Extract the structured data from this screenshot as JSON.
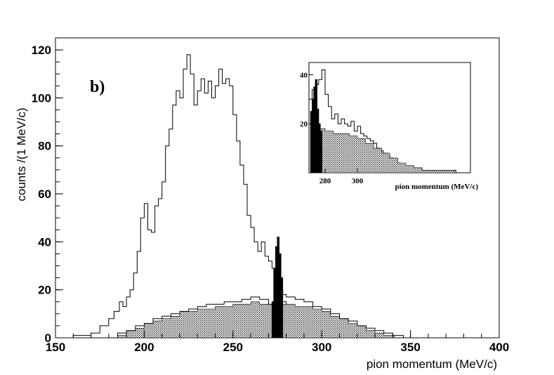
{
  "chart_data": [
    {
      "type": "histogram",
      "panel_label": "b)",
      "xlabel": "pion momentum (MeV/c)",
      "ylabel": "counts /(1 MeV/c)",
      "xlim": [
        150,
        400
      ],
      "ylim": [
        0,
        125
      ],
      "x_ticks": [
        150,
        200,
        250,
        300,
        350,
        400
      ],
      "y_ticks": [
        0,
        20,
        40,
        60,
        80,
        100,
        120
      ],
      "bin_width": 1,
      "series": [
        {
          "style": "open-outline",
          "points": [
            [
              160,
              1
            ],
            [
              165,
              1
            ],
            [
              170,
              2
            ],
            [
              175,
              5
            ],
            [
              180,
              8
            ],
            [
              183,
              11
            ],
            [
              186,
              15
            ],
            [
              188,
              13
            ],
            [
              190,
              17
            ],
            [
              192,
              20
            ],
            [
              194,
              27
            ],
            [
              196,
              36
            ],
            [
              198,
              50
            ],
            [
              200,
              56
            ],
            [
              202,
              45
            ],
            [
              204,
              44
            ],
            [
              206,
              55
            ],
            [
              208,
              58
            ],
            [
              210,
              65
            ],
            [
              212,
              80
            ],
            [
              214,
              87
            ],
            [
              216,
              97
            ],
            [
              218,
              103
            ],
            [
              220,
              100
            ],
            [
              222,
              112
            ],
            [
              224,
              118
            ],
            [
              226,
              110
            ],
            [
              228,
              97
            ],
            [
              230,
              103
            ],
            [
              232,
              108
            ],
            [
              234,
              102
            ],
            [
              236,
              107
            ],
            [
              238,
              100
            ],
            [
              240,
              105
            ],
            [
              242,
              112
            ],
            [
              244,
              106
            ],
            [
              246,
              108
            ],
            [
              248,
              105
            ],
            [
              250,
              93
            ],
            [
              252,
              82
            ],
            [
              254,
              72
            ],
            [
              256,
              64
            ],
            [
              258,
              51
            ],
            [
              260,
              46
            ],
            [
              262,
              40
            ],
            [
              264,
              36
            ],
            [
              266,
              40
            ],
            [
              268,
              34
            ],
            [
              270,
              32
            ],
            [
              272,
              29
            ],
            [
              274,
              25
            ],
            [
              276,
              20
            ],
            [
              278,
              15
            ],
            [
              280,
              10
            ],
            [
              285,
              5
            ],
            [
              290,
              2
            ],
            [
              295,
              1
            ]
          ]
        },
        {
          "style": "dotted-fill",
          "points": [
            [
              185,
              1
            ],
            [
              190,
              3
            ],
            [
              195,
              4
            ],
            [
              200,
              6
            ],
            [
              205,
              7
            ],
            [
              210,
              8
            ],
            [
              215,
              9
            ],
            [
              220,
              11
            ],
            [
              225,
              11
            ],
            [
              230,
              12
            ],
            [
              235,
              12
            ],
            [
              240,
              13
            ],
            [
              245,
              13
            ],
            [
              250,
              14
            ],
            [
              255,
              14
            ],
            [
              260,
              15
            ],
            [
              265,
              14
            ],
            [
              270,
              14
            ],
            [
              275,
              14
            ],
            [
              280,
              14
            ],
            [
              285,
              13
            ],
            [
              290,
              13
            ],
            [
              295,
              12
            ],
            [
              300,
              11
            ],
            [
              305,
              9
            ],
            [
              310,
              8
            ],
            [
              315,
              6
            ],
            [
              320,
              5
            ],
            [
              325,
              3
            ],
            [
              330,
              2
            ],
            [
              335,
              1
            ],
            [
              340,
              1
            ]
          ]
        },
        {
          "style": "open-outline",
          "points": [
            [
              185,
              2
            ],
            [
              190,
              3
            ],
            [
              195,
              5
            ],
            [
              200,
              6
            ],
            [
              205,
              8
            ],
            [
              210,
              9
            ],
            [
              215,
              10
            ],
            [
              220,
              11
            ],
            [
              225,
              12
            ],
            [
              230,
              13
            ],
            [
              235,
              14
            ],
            [
              240,
              14
            ],
            [
              245,
              15
            ],
            [
              250,
              15
            ],
            [
              255,
              16
            ],
            [
              260,
              17
            ],
            [
              265,
              16
            ],
            [
              270,
              14
            ],
            [
              275,
              18
            ],
            [
              280,
              17
            ],
            [
              285,
              16
            ],
            [
              290,
              15
            ],
            [
              295,
              13
            ],
            [
              300,
              12
            ],
            [
              305,
              10
            ],
            [
              310,
              8
            ],
            [
              315,
              7
            ],
            [
              320,
              5
            ],
            [
              325,
              4
            ],
            [
              330,
              3
            ],
            [
              335,
              2
            ],
            [
              340,
              1
            ],
            [
              345,
              1
            ]
          ]
        },
        {
          "style": "solid-fill",
          "points": [
            [
              272,
              15
            ],
            [
              273,
              29
            ],
            [
              274,
              38
            ],
            [
              275,
              42
            ],
            [
              276,
              35
            ],
            [
              277,
              25
            ]
          ]
        }
      ]
    },
    {
      "type": "histogram",
      "inset": true,
      "xlabel": "pion momentum (MeV/c)",
      "xlim": [
        270,
        370
      ],
      "ylim": [
        0,
        45
      ],
      "x_ticks": [
        280,
        300
      ],
      "y_ticks": [
        20,
        40
      ],
      "bin_width": 1,
      "series": [
        {
          "style": "open-outline",
          "points": [
            [
              270,
              30
            ],
            [
              272,
              34
            ],
            [
              274,
              36
            ],
            [
              276,
              38
            ],
            [
              278,
              42
            ],
            [
              280,
              32
            ],
            [
              282,
              27
            ],
            [
              284,
              22
            ],
            [
              286,
              24
            ],
            [
              288,
              20
            ],
            [
              290,
              22
            ],
            [
              292,
              20
            ],
            [
              294,
              19
            ],
            [
              296,
              21
            ],
            [
              298,
              17
            ],
            [
              300,
              19
            ],
            [
              302,
              16
            ],
            [
              304,
              15
            ],
            [
              306,
              14
            ],
            [
              308,
              13
            ],
            [
              310,
              12
            ],
            [
              312,
              10
            ],
            [
              314,
              9
            ],
            [
              316,
              8
            ],
            [
              318,
              7
            ],
            [
              320,
              6
            ],
            [
              322,
              5
            ],
            [
              324,
              4
            ],
            [
              326,
              3
            ],
            [
              328,
              3
            ],
            [
              330,
              2
            ],
            [
              335,
              2
            ],
            [
              340,
              1
            ],
            [
              350,
              1
            ],
            [
              360,
              1
            ]
          ]
        },
        {
          "style": "dotted-fill",
          "points": [
            [
              277,
              18
            ],
            [
              280,
              17
            ],
            [
              285,
              16
            ],
            [
              290,
              16
            ],
            [
              295,
              15
            ],
            [
              300,
              14
            ],
            [
              305,
              12
            ],
            [
              310,
              10
            ],
            [
              315,
              8
            ],
            [
              320,
              6
            ],
            [
              325,
              4
            ],
            [
              330,
              3
            ],
            [
              335,
              2
            ],
            [
              340,
              1
            ],
            [
              350,
              1
            ],
            [
              360,
              0
            ]
          ]
        },
        {
          "style": "solid-fill",
          "points": [
            [
              271,
              25
            ],
            [
              272,
              30
            ],
            [
              273,
              35
            ],
            [
              274,
              38
            ],
            [
              275,
              26
            ],
            [
              276,
              20
            ],
            [
              277,
              17
            ]
          ]
        }
      ]
    }
  ]
}
